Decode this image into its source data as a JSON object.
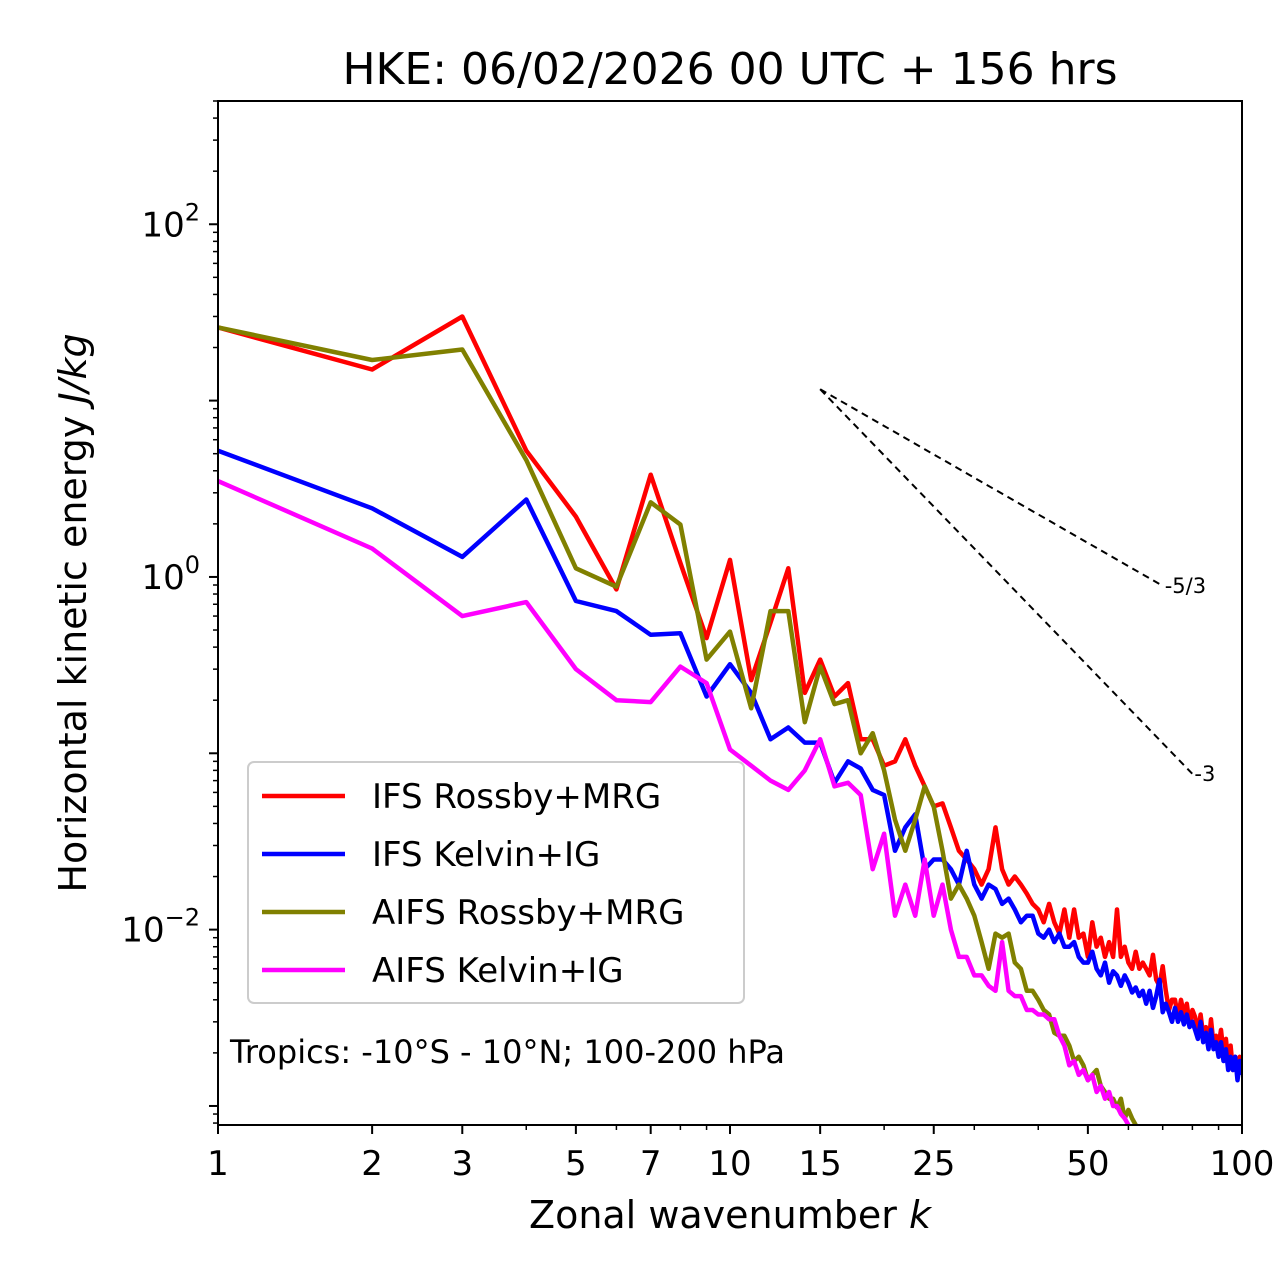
{
  "chart_data": {
    "type": "line",
    "title": "HKE: 06/02/2026 00 UTC + 156 hrs",
    "xlabel": "Zonal wavenumber ",
    "xlabel_italic": "k",
    "ylabel": "Horizontal kinetic energy ",
    "ylabel_italic": "J/kg",
    "xscale": "log",
    "yscale": "log",
    "xlim": [
      1,
      100
    ],
    "ylim": [
      0.00078,
      500
    ],
    "x_ticks": [
      1,
      2,
      3,
      5,
      7,
      10,
      15,
      25,
      50,
      100
    ],
    "x_tick_labels": [
      "1",
      "2",
      "3",
      "5",
      "7",
      "10",
      "15",
      "25",
      "50",
      "100"
    ],
    "y_ticks": [
      {
        "value": 100,
        "base": "10",
        "exp": "2"
      },
      {
        "value": 1,
        "base": "10",
        "exp": "0"
      },
      {
        "value": 0.01,
        "base": "10",
        "exp": "−2"
      }
    ],
    "legend_position": "lower-left",
    "annotation": "Tropics: -10°S - 10°N; 100-200 hPa",
    "reference_lines": [
      {
        "label": "-5/3",
        "slope": -1.6667,
        "x_start": 15,
        "x_end": 70,
        "y_start": 11.6
      },
      {
        "label": "-3",
        "slope": -3,
        "x_start": 15,
        "x_end": 80,
        "y_start": 11.6
      }
    ],
    "series": [
      {
        "name": "IFS Rossby+MRG",
        "color": "#ff0000",
        "x": [
          1,
          2,
          3,
          4,
          5,
          6,
          7,
          8,
          9,
          10,
          11,
          12,
          13,
          14,
          15,
          16,
          17,
          18,
          19,
          20,
          21,
          22,
          23,
          24,
          25,
          26,
          27,
          28,
          29,
          30,
          31,
          32,
          33,
          34,
          35,
          36,
          37,
          38,
          39,
          40,
          41,
          42,
          43,
          44,
          45,
          46,
          47,
          48,
          49,
          50,
          51,
          52,
          53,
          54,
          55,
          56,
          57,
          58,
          59,
          60,
          61,
          62,
          63,
          64,
          65,
          66,
          67,
          68,
          69,
          70,
          71,
          72,
          73,
          74,
          75,
          76,
          77,
          78,
          79,
          80,
          81,
          82,
          83,
          84,
          85,
          86,
          87,
          88,
          89,
          90,
          91,
          92,
          93,
          94,
          95,
          96,
          97,
          98,
          99,
          100
        ],
        "values": [
          26,
          15,
          30,
          5.2,
          2.2,
          0.85,
          3.8,
          1.2,
          0.45,
          1.25,
          0.26,
          0.55,
          1.12,
          0.22,
          0.34,
          0.21,
          0.25,
          0.12,
          0.12,
          0.085,
          0.09,
          0.12,
          0.085,
          0.065,
          0.05,
          0.052,
          0.038,
          0.028,
          0.025,
          0.022,
          0.018,
          0.022,
          0.038,
          0.022,
          0.018,
          0.02,
          0.018,
          0.016,
          0.014,
          0.013,
          0.011,
          0.014,
          0.011,
          0.0095,
          0.013,
          0.009,
          0.013,
          0.009,
          0.0095,
          0.007,
          0.011,
          0.008,
          0.009,
          0.007,
          0.0085,
          0.007,
          0.013,
          0.007,
          0.008,
          0.0065,
          0.006,
          0.0075,
          0.006,
          0.0065,
          0.006,
          0.0055,
          0.0072,
          0.0052,
          0.0048,
          0.0062,
          0.0045,
          0.0035,
          0.004,
          0.004,
          0.0032,
          0.004,
          0.0033,
          0.0038,
          0.0029,
          0.0035,
          0.0032,
          0.0026,
          0.0033,
          0.0025,
          0.0028,
          0.0022,
          0.0031,
          0.0022,
          0.0025,
          0.0022,
          0.0027,
          0.002,
          0.0024,
          0.0018,
          0.0022,
          0.0016,
          0.0019,
          0.0015,
          0.0019,
          0.0017
        ]
      },
      {
        "name": "IFS Kelvin+IG",
        "color": "#0000ff",
        "x": [
          1,
          2,
          3,
          4,
          5,
          6,
          7,
          8,
          9,
          10,
          11,
          12,
          13,
          14,
          15,
          16,
          17,
          18,
          19,
          20,
          21,
          22,
          23,
          24,
          25,
          26,
          27,
          28,
          29,
          30,
          31,
          32,
          33,
          34,
          35,
          36,
          37,
          38,
          39,
          40,
          41,
          42,
          43,
          44,
          45,
          46,
          47,
          48,
          49,
          50,
          51,
          52,
          53,
          54,
          55,
          56,
          57,
          58,
          59,
          60,
          61,
          62,
          63,
          64,
          65,
          66,
          67,
          68,
          69,
          70,
          71,
          72,
          73,
          74,
          75,
          76,
          77,
          78,
          79,
          80,
          81,
          82,
          83,
          84,
          85,
          86,
          87,
          88,
          89,
          90,
          91,
          92,
          93,
          94,
          95,
          96,
          97,
          98,
          99,
          100
        ],
        "values": [
          5.2,
          2.45,
          1.3,
          2.75,
          0.73,
          0.64,
          0.47,
          0.48,
          0.21,
          0.32,
          0.22,
          0.12,
          0.14,
          0.115,
          0.115,
          0.068,
          0.09,
          0.082,
          0.062,
          0.058,
          0.028,
          0.038,
          0.045,
          0.022,
          0.025,
          0.025,
          0.022,
          0.018,
          0.028,
          0.018,
          0.015,
          0.018,
          0.017,
          0.014,
          0.015,
          0.013,
          0.011,
          0.012,
          0.012,
          0.0095,
          0.009,
          0.01,
          0.0085,
          0.0095,
          0.008,
          0.008,
          0.0085,
          0.007,
          0.0065,
          0.0065,
          0.0075,
          0.006,
          0.0055,
          0.0065,
          0.005,
          0.0058,
          0.0055,
          0.0048,
          0.0055,
          0.005,
          0.0044,
          0.0047,
          0.0042,
          0.0045,
          0.0038,
          0.0045,
          0.0036,
          0.0042,
          0.0052,
          0.0034,
          0.0038,
          0.0034,
          0.003,
          0.0036,
          0.003,
          0.0034,
          0.0029,
          0.0033,
          0.0028,
          0.003,
          0.0027,
          0.0024,
          0.003,
          0.0023,
          0.0026,
          0.0021,
          0.0027,
          0.0021,
          0.0023,
          0.0019,
          0.0023,
          0.0018,
          0.0021,
          0.0016,
          0.0019,
          0.0016,
          0.0019,
          0.0014,
          0.0018,
          0.0015
        ]
      },
      {
        "name": "AIFS Rossby+MRG",
        "color": "#808000",
        "x": [
          1,
          2,
          3,
          4,
          5,
          6,
          7,
          8,
          9,
          10,
          11,
          12,
          13,
          14,
          15,
          16,
          17,
          18,
          19,
          20,
          21,
          22,
          23,
          24,
          25,
          26,
          27,
          28,
          29,
          30,
          31,
          32,
          33,
          34,
          35,
          36,
          37,
          38,
          39,
          40,
          41,
          42,
          43,
          44,
          45,
          46,
          47,
          48,
          49,
          50,
          51,
          52,
          53,
          54,
          55,
          56,
          57,
          58,
          59,
          60,
          61,
          62
        ],
        "values": [
          26,
          17,
          19.5,
          4.6,
          1.12,
          0.88,
          2.65,
          1.98,
          0.34,
          0.49,
          0.18,
          0.64,
          0.64,
          0.15,
          0.31,
          0.19,
          0.2,
          0.1,
          0.13,
          0.08,
          0.042,
          0.028,
          0.042,
          0.065,
          0.05,
          0.028,
          0.015,
          0.018,
          0.015,
          0.012,
          0.0085,
          0.006,
          0.0095,
          0.009,
          0.0095,
          0.0065,
          0.006,
          0.0045,
          0.0045,
          0.004,
          0.0035,
          0.0033,
          0.0026,
          0.0025,
          0.0025,
          0.0022,
          0.0018,
          0.0019,
          0.0017,
          0.0014,
          0.0015,
          0.0016,
          0.0013,
          0.0012,
          0.0011,
          0.0011,
          0.00098,
          0.0011,
          0.00085,
          0.00095,
          0.00085,
          0.00078
        ]
      },
      {
        "name": "AIFS Kelvin+IG",
        "color": "#ff00ff",
        "x": [
          1,
          2,
          3,
          4,
          5,
          6,
          7,
          8,
          9,
          10,
          11,
          12,
          13,
          14,
          15,
          16,
          17,
          18,
          19,
          20,
          21,
          22,
          23,
          24,
          25,
          26,
          27,
          28,
          29,
          30,
          31,
          32,
          33,
          34,
          35,
          36,
          37,
          38,
          39,
          40,
          41,
          42,
          43,
          44,
          45,
          46,
          47,
          48,
          49,
          50,
          51,
          52,
          53,
          54,
          55,
          56,
          57,
          58,
          59,
          60
        ],
        "values": [
          3.5,
          1.45,
          0.6,
          0.72,
          0.3,
          0.2,
          0.195,
          0.31,
          0.25,
          0.105,
          0.085,
          0.07,
          0.062,
          0.08,
          0.12,
          0.065,
          0.068,
          0.058,
          0.022,
          0.035,
          0.012,
          0.018,
          0.012,
          0.025,
          0.012,
          0.018,
          0.01,
          0.007,
          0.007,
          0.0055,
          0.0055,
          0.0048,
          0.0045,
          0.0085,
          0.0045,
          0.0042,
          0.0042,
          0.0035,
          0.0035,
          0.0033,
          0.0033,
          0.0031,
          0.0031,
          0.0025,
          0.0022,
          0.0017,
          0.0018,
          0.0015,
          0.0016,
          0.0014,
          0.0015,
          0.0012,
          0.0013,
          0.0011,
          0.0012,
          0.001,
          0.001,
          0.0009,
          0.00085,
          0.00078
        ]
      }
    ]
  }
}
